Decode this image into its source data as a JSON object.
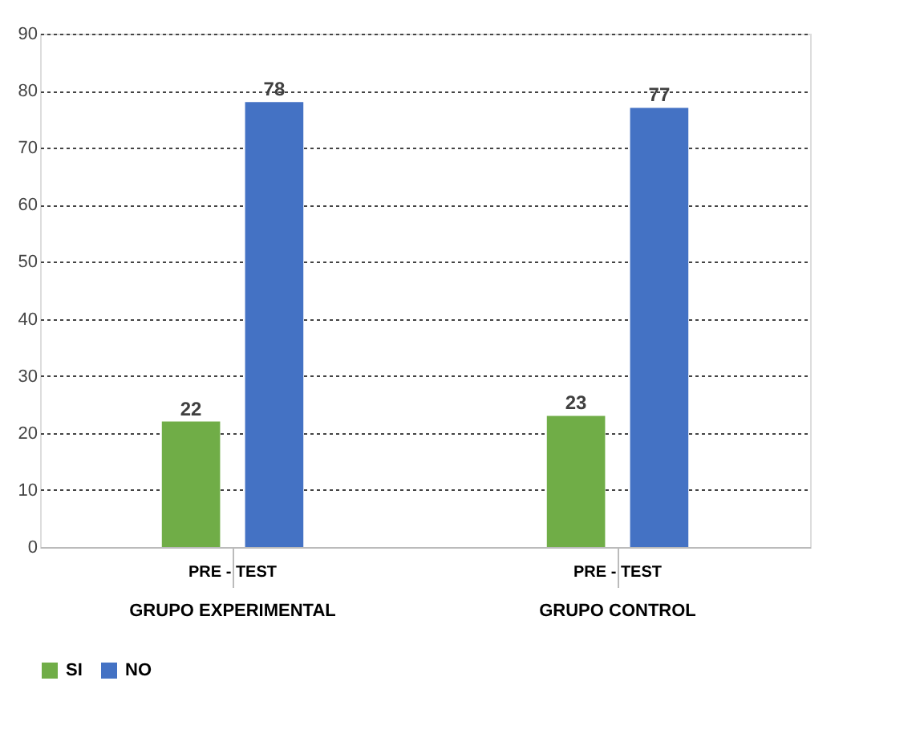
{
  "chart_data": {
    "type": "bar",
    "categories": [
      "PRE - TEST",
      "PRE - TEST"
    ],
    "series": [
      {
        "name": "SI",
        "color": "#70ad47",
        "values": [
          22,
          23
        ]
      },
      {
        "name": "NO",
        "color": "#4472c4",
        "values": [
          78,
          77
        ]
      }
    ],
    "annotations": [
      "GRUPO EXPERIMENTAL",
      "GRUPO CONTROL"
    ],
    "ylim": [
      0,
      90
    ],
    "yticks": [
      0,
      10,
      20,
      30,
      40,
      50,
      60,
      70,
      80,
      90
    ],
    "grid": "y",
    "legend": "bottom",
    "data_labels": true
  }
}
